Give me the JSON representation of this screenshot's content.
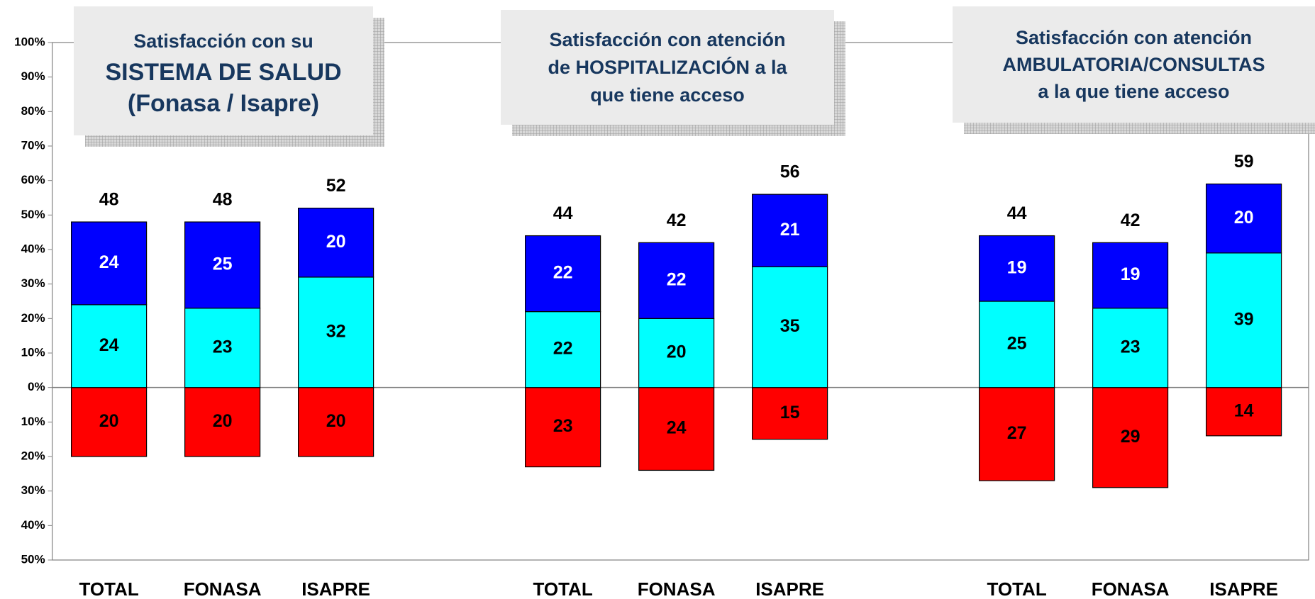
{
  "chart_data": {
    "type": "bar",
    "stacked": true,
    "categories": [
      "TOTAL",
      "FONASA",
      "ISAPRE",
      null,
      "TOTAL",
      "FONASA",
      "ISAPRE",
      null,
      "TOTAL",
      "FONASA",
      "ISAPRE"
    ],
    "series": [
      {
        "color": "#ff0000",
        "values": [
          -20,
          -20,
          -20,
          null,
          -23,
          -24,
          -15,
          null,
          -27,
          -29,
          -14
        ],
        "value_labels": [
          "20",
          "20",
          "20",
          null,
          "23",
          "24",
          "15",
          null,
          "27",
          "29",
          "14"
        ]
      },
      {
        "color": "#00ffff",
        "values": [
          24,
          23,
          32,
          null,
          22,
          20,
          35,
          null,
          25,
          23,
          39
        ]
      },
      {
        "color": "#0000ff",
        "values": [
          24,
          25,
          20,
          null,
          22,
          22,
          21,
          null,
          19,
          19,
          20
        ]
      }
    ],
    "totals": [
      48,
      48,
      52,
      null,
      44,
      42,
      56,
      null,
      44,
      42,
      59
    ],
    "annotations": [
      {
        "lines": [
          "Satisfacción con su",
          "SISTEMA DE SALUD",
          "(Fonasa / Isapre)"
        ]
      },
      {
        "lines": [
          "Satisfacción con atención",
          "de HOSPITALIZACIÓN a la",
          "que tiene acceso"
        ]
      },
      {
        "lines": [
          "Satisfacción con atención",
          "AMBULATORIA/CONSULTAS",
          "a la que tiene acceso"
        ]
      }
    ],
    "ylim": [
      -50,
      100
    ],
    "yticks": [
      {
        "value": -50,
        "label": "50%"
      },
      {
        "value": -40,
        "label": "40%"
      },
      {
        "value": -30,
        "label": "30%"
      },
      {
        "value": -20,
        "label": "20%"
      },
      {
        "value": -10,
        "label": "10%"
      },
      {
        "value": 0,
        "label": "0%"
      },
      {
        "value": 10,
        "label": "10%"
      },
      {
        "value": 20,
        "label": "20%"
      },
      {
        "value": 30,
        "label": "30%"
      },
      {
        "value": 40,
        "label": "40%"
      },
      {
        "value": 50,
        "label": "50%"
      },
      {
        "value": 60,
        "label": "60%"
      },
      {
        "value": 70,
        "label": "70%"
      },
      {
        "value": 80,
        "label": "80%"
      },
      {
        "value": 90,
        "label": "90%"
      },
      {
        "value": 100,
        "label": "100%"
      }
    ],
    "grid": false
  }
}
